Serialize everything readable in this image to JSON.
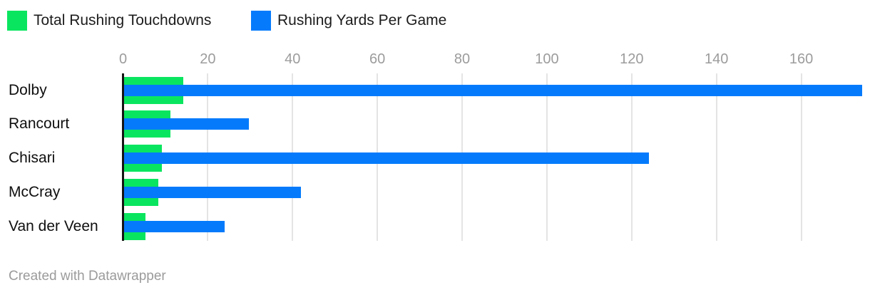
{
  "colors": {
    "touchdowns_green": "#0ae55f",
    "yards_blue": "#057bfc",
    "axis_line": "#151515",
    "gridline": "#e4e4e4",
    "tick_text": "#9c9c9c",
    "label_text": "#0f0f0f",
    "legend_text": "#1c1c1c",
    "footer_text": "#9b9b9b",
    "background": "#ffffff"
  },
  "legend": {
    "items": [
      {
        "label": "Total Rushing Touchdowns",
        "color": "#0ae55f"
      },
      {
        "label": "Rushing Yards Per Game",
        "color": "#057bfc"
      }
    ]
  },
  "footer": {
    "credit": "Created with Datawrapper"
  },
  "chart_data": {
    "type": "bar",
    "orientation": "horizontal",
    "title": "",
    "xlabel": "",
    "ylabel": "",
    "categories": [
      "Dolby",
      "Rancourt",
      "Chisari",
      "McCray",
      "Van der Veen"
    ],
    "series": [
      {
        "name": "Total Rushing Touchdowns",
        "color": "#0ae55f",
        "values": [
          14,
          11,
          9,
          8,
          5
        ]
      },
      {
        "name": "Rushing Yards Per Game",
        "color": "#057bfc",
        "values": [
          174.2,
          29.5,
          123.8,
          41.7,
          23.8
        ]
      }
    ],
    "x_ticks": [
      0,
      20,
      40,
      60,
      80,
      100,
      120,
      140,
      160
    ],
    "xlim": [
      0,
      176.3
    ],
    "grid": true,
    "legend_position": "top-left"
  }
}
